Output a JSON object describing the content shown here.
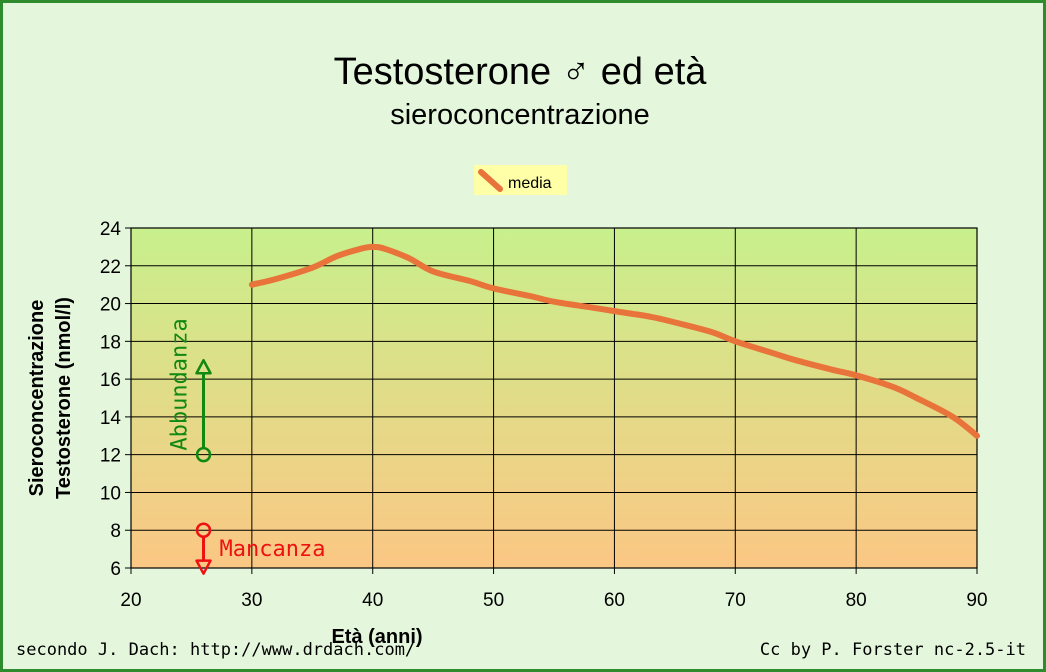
{
  "chart_data": {
    "type": "line",
    "title": "Testosterone ♂ ed età",
    "subtitle": "sieroconcentrazione",
    "xlabel": "Età (anni)",
    "ylabel_line1": "Sieroconcentrazione",
    "ylabel_line2": "Testosterone (nmol/l)",
    "xlim": [
      20,
      90
    ],
    "ylim": [
      6,
      24
    ],
    "x_ticks": [
      20,
      30,
      40,
      50,
      60,
      70,
      80,
      90
    ],
    "y_ticks": [
      6,
      8,
      10,
      12,
      14,
      16,
      18,
      20,
      22,
      24
    ],
    "grid": true,
    "legend_position": "top-center",
    "series": [
      {
        "name": "media",
        "color": "#e8743b",
        "x": [
          30,
          32,
          35,
          37,
          39,
          40,
          41,
          43,
          45,
          48,
          50,
          53,
          55,
          58,
          60,
          63,
          65,
          68,
          70,
          73,
          75,
          78,
          80,
          83,
          85,
          88,
          90
        ],
        "y": [
          21.0,
          21.3,
          21.9,
          22.5,
          22.9,
          23.0,
          22.9,
          22.4,
          21.7,
          21.2,
          20.8,
          20.4,
          20.1,
          19.8,
          19.6,
          19.3,
          19.0,
          18.5,
          18.0,
          17.4,
          17.0,
          16.5,
          16.2,
          15.6,
          15.0,
          14.0,
          13.0
        ]
      }
    ],
    "annotations": [
      {
        "text": "Abbundanza",
        "color": "#118811",
        "x": 26,
        "y_from": 12,
        "y_to": 17
      },
      {
        "text": "Mancanza",
        "color": "#ee1111",
        "x": 26,
        "y_from": 8,
        "y_to": 5.7
      }
    ],
    "background_gradient": {
      "top": "#c8f08c",
      "bottom": "#fbc784"
    },
    "legend_bg": "#ffffa8"
  },
  "footer": {
    "source": "secondo J. Dach: http://www.drdach.com/",
    "license": "Cc by P. Forster nc-2.5-it"
  }
}
